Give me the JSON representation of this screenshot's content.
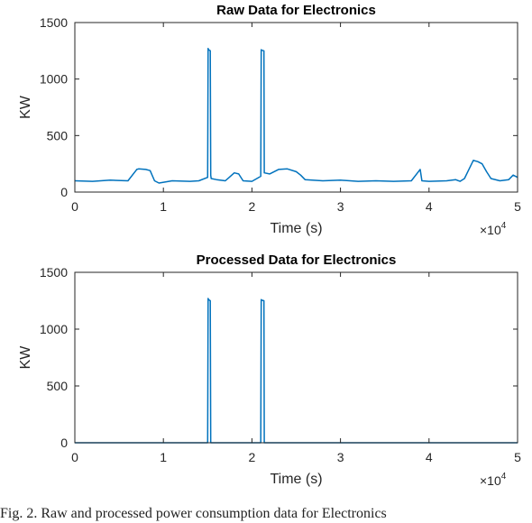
{
  "caption": "Fig. 2.  Raw and processed power consumption data for Electronics",
  "colors": {
    "series": "#0072BD",
    "axis": "#262626",
    "background": "#ffffff"
  },
  "chart_data": [
    {
      "type": "line",
      "title": "Raw Data for Electronics",
      "xlabel": "Time (s)",
      "ylabel": "KW",
      "xlim": [
        0,
        50000
      ],
      "ylim": [
        0,
        1500
      ],
      "xticks": [
        0,
        1,
        2,
        3,
        4,
        5
      ],
      "yticks": [
        0,
        500,
        1000,
        1500
      ],
      "xexponent": "×10",
      "xexponent_power": "4",
      "grid": false,
      "series": [
        {
          "x": [
            0,
            2000,
            4000,
            6000,
            7000,
            7200,
            8000,
            8500,
            9000,
            9500,
            11000,
            13000,
            14000,
            15000,
            15050,
            15100,
            15300,
            15350,
            15400,
            16000,
            17000,
            18000,
            18500,
            19000,
            20000,
            21000,
            21050,
            21100,
            21350,
            21400,
            22000,
            23000,
            24000,
            25000,
            25500,
            26000,
            28000,
            30000,
            32000,
            34000,
            36000,
            38000,
            38800,
            39000,
            39200,
            40000,
            42000,
            43000,
            43500,
            44000,
            44500,
            45000,
            45500,
            46000,
            46500,
            47000,
            48000,
            49000,
            49500,
            50000
          ],
          "y": [
            100,
            95,
            105,
            100,
            200,
            205,
            200,
            190,
            100,
            80,
            100,
            95,
            100,
            130,
            1270,
            1260,
            1250,
            150,
            120,
            110,
            100,
            170,
            160,
            100,
            95,
            140,
            1260,
            1255,
            1250,
            170,
            160,
            200,
            205,
            180,
            150,
            110,
            100,
            105,
            95,
            100,
            95,
            100,
            180,
            200,
            100,
            95,
            100,
            110,
            95,
            120,
            200,
            280,
            270,
            250,
            180,
            120,
            100,
            110,
            150,
            130
          ]
        }
      ]
    },
    {
      "type": "line",
      "title": "Processed Data for Electronics",
      "xlabel": "Time (s)",
      "ylabel": "KW",
      "xlim": [
        0,
        50000
      ],
      "ylim": [
        0,
        1500
      ],
      "xticks": [
        0,
        1,
        2,
        3,
        4,
        5
      ],
      "yticks": [
        0,
        500,
        1000,
        1500
      ],
      "xexponent": "×10",
      "xexponent_power": "4",
      "grid": false,
      "series": [
        {
          "x": [
            0,
            14950,
            15000,
            15050,
            15100,
            15300,
            15350,
            15400,
            21000,
            21050,
            21100,
            21350,
            21400,
            21450,
            50000
          ],
          "y": [
            0,
            0,
            0,
            1270,
            1260,
            1250,
            0,
            0,
            0,
            1260,
            1255,
            1250,
            0,
            0,
            0
          ]
        }
      ]
    }
  ]
}
